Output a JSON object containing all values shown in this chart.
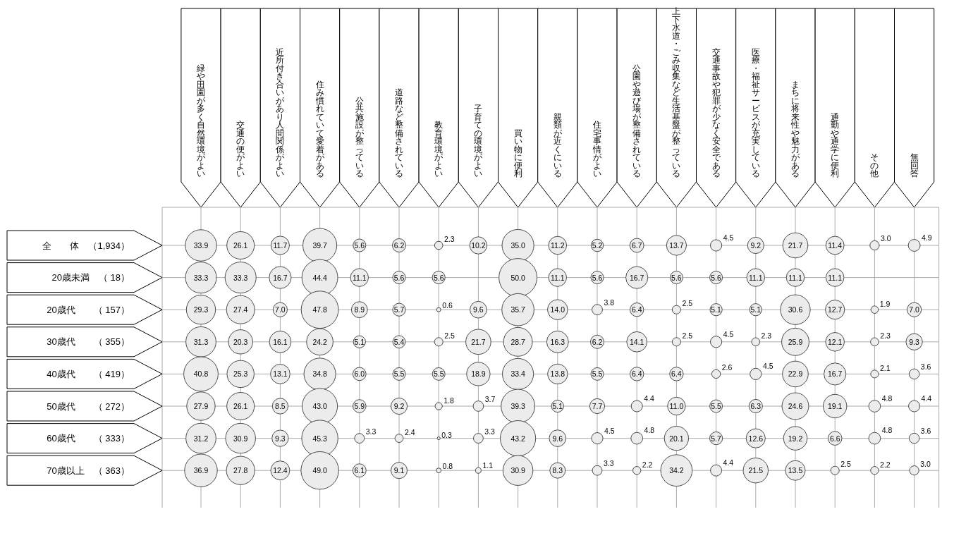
{
  "chart_data": {
    "type": "heatmap",
    "grid": true,
    "cell_labels": [
      [
        "33.9",
        "26.1",
        "11.7",
        "39.7",
        "5.6",
        "6.2",
        "2.3",
        "10.2",
        "35.0",
        "11.2",
        "5.2",
        "6.7",
        "13.7",
        "4.5",
        "9.2",
        "21.7",
        "11.4",
        "3.0",
        "4.9"
      ],
      [
        "33.3",
        "33.3",
        "16.7",
        "44.4",
        "11.1",
        "5.6",
        "5.6",
        null,
        "50.0",
        "11.1",
        "5.6",
        "16.7",
        "5.6",
        "5.6",
        "11.1",
        "11.1",
        "11.1",
        null,
        null
      ],
      [
        "29.3",
        "27.4",
        "7.0",
        "47.8",
        "8.9",
        "5.7",
        "0.6",
        "9.6",
        "35.7",
        "14.0",
        "3.8",
        "6.4",
        "2.5",
        "5.1",
        "5.1",
        "30.6",
        "12.7",
        "1.9",
        "7.0"
      ],
      [
        "31.3",
        "20.3",
        "16.1",
        "24.2",
        "5.1",
        "5.4",
        "2.5",
        "21.7",
        "28.7",
        "16.3",
        "6.2",
        "14.1",
        "2.5",
        "4.5",
        "2.3",
        "25.9",
        "12.1",
        "2.3",
        "9.3"
      ],
      [
        "40.8",
        "25.3",
        "13.1",
        "34.8",
        "6.0",
        "5.5",
        "5.5",
        "18.9",
        "33.4",
        "13.8",
        "5.5",
        "6.4",
        "6.4",
        "2.6",
        "4.5",
        "22.9",
        "16.7",
        "2.1",
        "3.6"
      ],
      [
        "27.9",
        "26.1",
        "8.5",
        "43.0",
        "5.9",
        "9.2",
        "1.8",
        "3.7",
        "39.3",
        "5.1",
        "7.7",
        "4.4",
        "11.0",
        "5.5",
        "6.3",
        "24.6",
        "19.1",
        "4.8",
        "4.4"
      ],
      [
        "31.2",
        "30.9",
        "9.3",
        "45.3",
        "3.3",
        "2.4",
        "0.3",
        "3.3",
        "43.2",
        "9.6",
        "4.5",
        "4.8",
        "20.1",
        "5.7",
        "12.6",
        "19.2",
        "6.6",
        "4.8",
        "3.6"
      ],
      [
        "36.9",
        "27.8",
        "12.4",
        "49.0",
        "6.1",
        "9.1",
        "0.8",
        "1.1",
        "30.9",
        "8.3",
        "3.3",
        "2.2",
        "34.2",
        "4.4",
        "21.5",
        "13.5",
        "2.5",
        "2.2",
        "3.0"
      ]
    ],
    "categories": [
      "緑や田園が多く自然環境がよい",
      "交通の便がよい",
      "近所付き合いがあり人間関係がよい",
      "住み慣れていて愛着がある",
      "公共施設が整っている",
      "道路など整備されている",
      "教育環境がよい",
      "子育ての環境がよい",
      "買い物に便利",
      "親類が近くにいる",
      "住宅事情がよい",
      "公園や遊び場が整備されている",
      "上下水道・ごみ収集など生活基盤が整っている",
      "交通事故や犯罪が少なく安全である",
      "医療・福祉サービスが充実している",
      "まちに将来性や魅力がある",
      "通勤や通学に便利",
      "その他",
      "無回答"
    ],
    "y_categories": [
      "全　　体　（1,934）",
      "20歳未満　（ 18）",
      "20歳代　　（ 157）",
      "30歳代　　（ 355）",
      "40歳代　　（ 419）",
      "50歳代　　（ 272）",
      "60歳代　　（ 333）",
      "70歳以上　（ 363）"
    ],
    "cells": [
      [
        33.9,
        26.1,
        11.7,
        39.7,
        5.6,
        6.2,
        2.3,
        10.2,
        35.0,
        11.2,
        5.2,
        6.7,
        13.7,
        4.5,
        9.2,
        21.7,
        11.4,
        3.0,
        4.9
      ],
      [
        33.3,
        33.3,
        16.7,
        44.4,
        11.1,
        5.6,
        5.6,
        null,
        50.0,
        11.1,
        5.6,
        16.7,
        5.6,
        5.6,
        11.1,
        11.1,
        11.1,
        null,
        null
      ],
      [
        29.3,
        27.4,
        7.0,
        47.8,
        8.9,
        5.7,
        0.6,
        9.6,
        35.7,
        14.0,
        3.8,
        6.4,
        2.5,
        5.1,
        5.1,
        30.6,
        12.7,
        1.9,
        7.0
      ],
      [
        31.3,
        20.3,
        16.1,
        24.2,
        5.1,
        5.4,
        2.5,
        21.7,
        28.7,
        16.3,
        6.2,
        14.1,
        2.5,
        4.5,
        2.3,
        25.9,
        12.1,
        2.3,
        9.3
      ],
      [
        40.8,
        25.3,
        13.1,
        34.8,
        6.0,
        5.5,
        5.5,
        18.9,
        33.4,
        13.8,
        5.5,
        6.4,
        6.4,
        2.6,
        4.5,
        22.9,
        16.7,
        2.1,
        3.6
      ],
      [
        27.9,
        26.1,
        8.5,
        43.0,
        5.9,
        9.2,
        1.8,
        3.7,
        39.3,
        5.1,
        7.7,
        4.4,
        11.0,
        5.5,
        6.3,
        24.6,
        19.1,
        4.8,
        4.4
      ],
      [
        31.2,
        30.9,
        9.3,
        45.3,
        3.3,
        2.4,
        0.3,
        3.3,
        43.2,
        9.6,
        4.5,
        4.8,
        20.1,
        5.7,
        12.6,
        19.2,
        6.6,
        4.8,
        3.6
      ],
      [
        36.9,
        27.8,
        12.4,
        49.0,
        6.1,
        9.1,
        0.8,
        1.1,
        30.9,
        8.3,
        3.3,
        2.2,
        34.2,
        4.4,
        21.5,
        13.5,
        2.5,
        2.2,
        3.0
      ]
    ]
  }
}
